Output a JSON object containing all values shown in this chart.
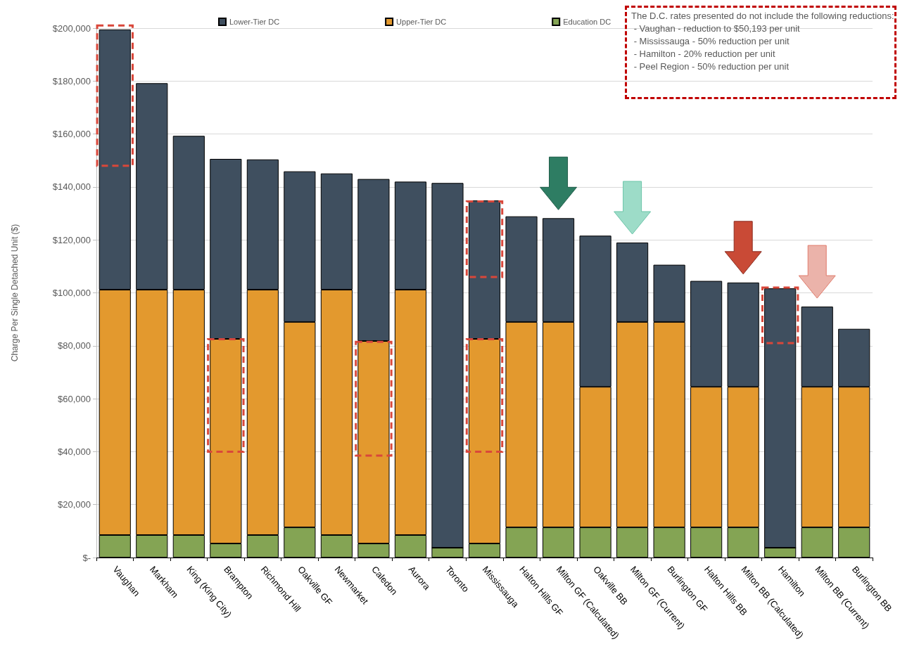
{
  "chart_data": {
    "type": "bar",
    "stacked": true,
    "categories": [
      "Vaughan",
      "Markham",
      "King (King City)",
      "Brampton",
      "Richmond Hill",
      "Oakville GF",
      "Newmarket",
      "Caledon",
      "Aurora",
      "Toronto",
      "Mississauga",
      "Halton Hills GF",
      "Milton GF (Calculated)",
      "Oakville BB",
      "Milton GF (Current)",
      "Burlington GF",
      "Halton Hills BB",
      "Milton BB (Calculated)",
      "Hamilton",
      "Milton BB (Current)",
      "Burlington BB"
    ],
    "series": [
      {
        "name": "Education DC",
        "color": "#84a454",
        "values": [
          8500,
          8500,
          8500,
          5300,
          8500,
          11400,
          8500,
          5300,
          8500,
          3700,
          5300,
          11400,
          11400,
          11400,
          11400,
          11400,
          11400,
          11400,
          3700,
          11400,
          11400
        ]
      },
      {
        "name": "Upper-Tier DC",
        "color": "#e3992e",
        "values": [
          92700,
          92700,
          92700,
          77300,
          92700,
          77600,
          92700,
          76500,
          92700,
          0,
          77300,
          77600,
          77600,
          53100,
          77600,
          77600,
          53100,
          53100,
          0,
          53100,
          53100
        ]
      },
      {
        "name": "Lower-Tier DC",
        "color": "#3f4f5f",
        "values": [
          98300,
          78000,
          58100,
          68000,
          49200,
          56900,
          43900,
          61200,
          40800,
          137800,
          52300,
          39900,
          39200,
          57100,
          30000,
          21600,
          40000,
          39400,
          98000,
          30300,
          21900
        ]
      }
    ],
    "ylabel": "Charge Per Single Detached Unit ($)",
    "ylim": [
      0,
      200000
    ],
    "yticks": [
      {
        "value": 0,
        "label": "$-"
      },
      {
        "value": 20000,
        "label": "$20,000"
      },
      {
        "value": 40000,
        "label": "$40,000"
      },
      {
        "value": 60000,
        "label": "$60,000"
      },
      {
        "value": 80000,
        "label": "$80,000"
      },
      {
        "value": 100000,
        "label": "$100,000"
      },
      {
        "value": 120000,
        "label": "$120,000"
      },
      {
        "value": 140000,
        "label": "$140,000"
      },
      {
        "value": 160000,
        "label": "$160,000"
      },
      {
        "value": 180000,
        "label": "$180,000"
      },
      {
        "value": 200000,
        "label": "$200,000"
      }
    ],
    "grid": "y",
    "legend": "top",
    "annotations": [
      "The D.C. rates presented do not include the following reductions:\n - Vaughan - reduction to $50,193 per unit\n - Mississauga - 50% reduction per unit\n - Hamilton - 20% reduction per unit\n - Peel Region - 50% reduction per unit"
    ]
  }
}
